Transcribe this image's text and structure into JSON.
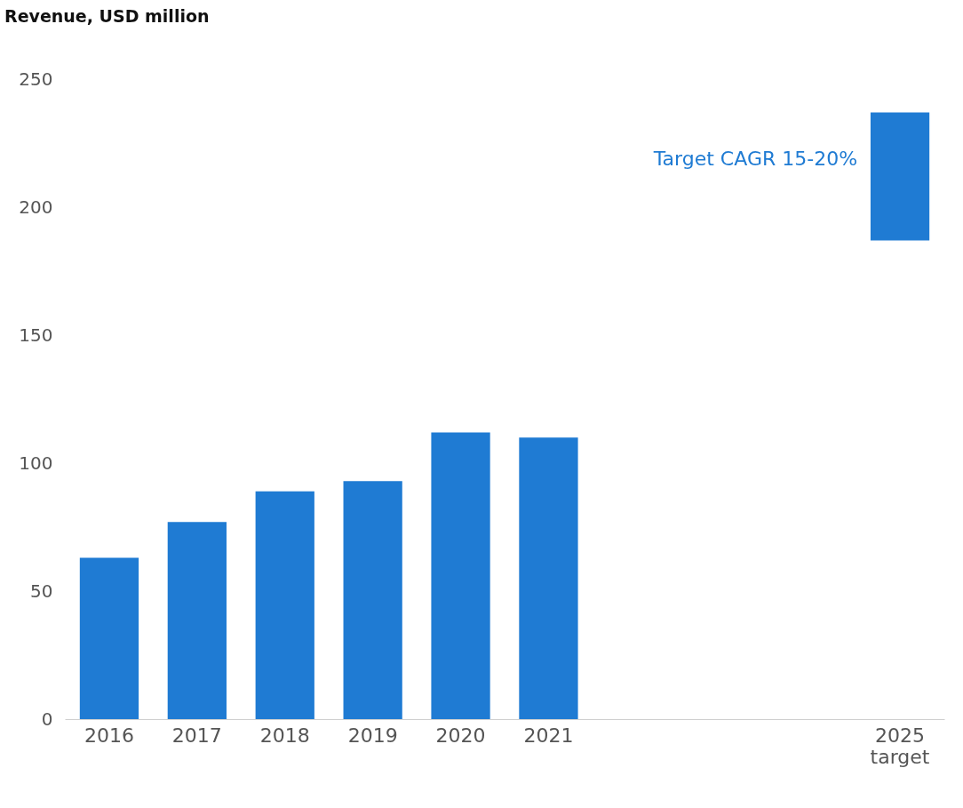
{
  "chart_data": {
    "type": "bar",
    "title": "Revenue, USD million",
    "categories": [
      "2016",
      "2017",
      "2018",
      "2019",
      "2020",
      "2021",
      null,
      null,
      null,
      "2025 target"
    ],
    "values": [
      63,
      77,
      89,
      93,
      112,
      110,
      null,
      null,
      null,
      50
    ],
    "base": [
      0,
      0,
      0,
      0,
      0,
      0,
      null,
      null,
      null,
      187
    ],
    "color": "#1f7bd3",
    "annotations": [
      "Target CAGR 15-20%"
    ],
    "ylim": [
      0,
      250
    ],
    "yticks": [
      0,
      50,
      100,
      150,
      200,
      250
    ],
    "grid": false
  }
}
